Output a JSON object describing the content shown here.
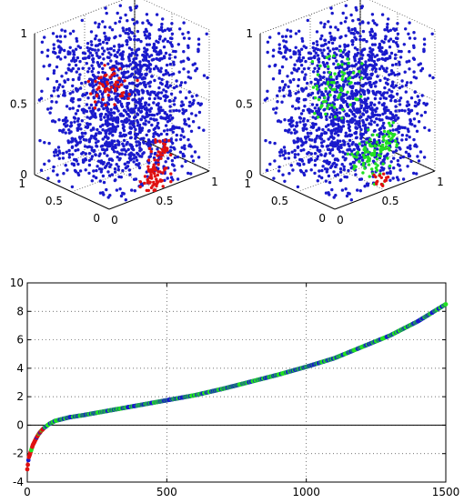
{
  "chart_data": [
    {
      "type": "scatter",
      "projection": "3d",
      "panel": "top-left",
      "axes": {
        "x": {
          "ticks": [
            0,
            0.5,
            1
          ],
          "range": [
            0,
            1
          ]
        },
        "y": {
          "ticks": [
            0,
            0.5,
            1
          ],
          "range": [
            0,
            1
          ]
        },
        "z": {
          "ticks": [
            0,
            0.5,
            1
          ],
          "range": [
            0,
            1
          ]
        }
      },
      "grid": true,
      "series": [
        {
          "color": "#1a1acc",
          "marker": "dot",
          "count": 1500,
          "distribution": "uniform in unit cube",
          "seed": 7
        },
        {
          "color": "#e01010",
          "marker": "dot",
          "clusters": [
            {
              "center": [
                0.52,
                0.07,
                0.08
              ],
              "spread": 0.06,
              "count": 60
            },
            {
              "center": [
                0.42,
                0.55,
                0.62
              ],
              "spread": 0.08,
              "count": 55
            },
            {
              "center": [
                0.95,
                0.55,
                0.05
              ],
              "spread": 0.04,
              "count": 25
            }
          ],
          "seed": 11
        }
      ]
    },
    {
      "type": "scatter",
      "projection": "3d",
      "panel": "top-right",
      "axes": {
        "x": {
          "ticks": [
            0,
            0.5,
            1
          ],
          "range": [
            0,
            1
          ]
        },
        "y": {
          "ticks": [
            0,
            0.5,
            1
          ],
          "range": [
            0,
            1
          ]
        },
        "z": {
          "ticks": [
            0,
            0.5,
            1
          ],
          "range": [
            0,
            1
          ]
        }
      },
      "grid": true,
      "series": [
        {
          "color": "#1a1acc",
          "marker": "dot",
          "count": 1500,
          "distribution": "uniform in unit cube",
          "seed": 7
        },
        {
          "color": "#22e022",
          "marker": "dot",
          "clusters": [
            {
              "center": [
                0.42,
                0.55,
                0.62
              ],
              "spread": 0.1,
              "count": 70
            },
            {
              "center": [
                0.48,
                0.15,
                0.2
              ],
              "spread": 0.08,
              "count": 70
            },
            {
              "center": [
                0.95,
                0.55,
                0.12
              ],
              "spread": 0.05,
              "count": 30
            }
          ],
          "seed": 23
        },
        {
          "color": "#e01010",
          "marker": "dot",
          "clusters": [
            {
              "center": [
                0.52,
                0.07,
                0.05
              ],
              "spread": 0.03,
              "count": 15
            }
          ],
          "seed": 31
        }
      ]
    },
    {
      "type": "line",
      "panel": "bottom",
      "xlim": [
        0,
        1500
      ],
      "ylim": [
        -4,
        10
      ],
      "xticks": [
        0,
        500,
        1000,
        1500
      ],
      "yticks": [
        -4,
        -2,
        0,
        2,
        4,
        6,
        8,
        10
      ],
      "grid": true,
      "baseline_y": 0,
      "curve": {
        "x": [
          0,
          5,
          10,
          20,
          30,
          40,
          50,
          60,
          80,
          100,
          150,
          200,
          300,
          400,
          500,
          600,
          700,
          800,
          900,
          1000,
          1100,
          1200,
          1300,
          1400,
          1450,
          1500
        ],
        "y": [
          -3.1,
          -2.3,
          -2.0,
          -1.4,
          -1.0,
          -0.65,
          -0.4,
          -0.2,
          0.1,
          0.3,
          0.55,
          0.7,
          1.05,
          1.4,
          1.75,
          2.1,
          2.55,
          3.05,
          3.55,
          4.1,
          4.7,
          5.5,
          6.3,
          7.3,
          7.9,
          8.5
        ]
      },
      "series": [
        {
          "color": "#1a1acc",
          "marker": "dot"
        },
        {
          "color": "#22e022",
          "marker": "dot"
        },
        {
          "color": "#e01010",
          "marker": "dot",
          "x_range": [
            0,
            60
          ]
        }
      ]
    }
  ]
}
